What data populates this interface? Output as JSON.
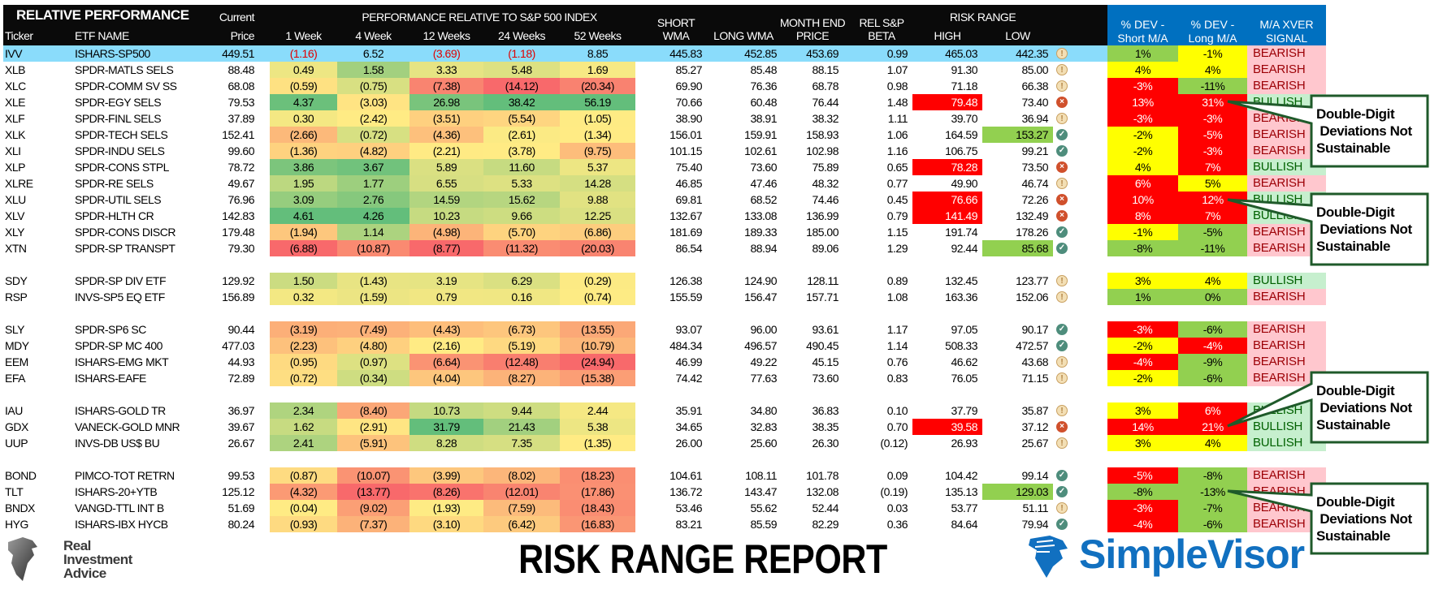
{
  "header": {
    "title": "RELATIVE PERFORMANCE",
    "ticker": "Ticker",
    "etf_name": "ETF NAME",
    "current": "Current",
    "price": "Price",
    "perf_group": "PERFORMANCE RELATIVE TO S&P 500 INDEX",
    "periods": [
      "1 Week",
      "4 Week",
      "12 Weeks",
      "24 Weeks",
      "52 Weeks"
    ],
    "short": "SHORT",
    "wma": "WMA",
    "long_wma": "LONG WMA",
    "month_end": "MONTH END",
    "month_end_price": "PRICE",
    "rel_sp": "REL S&P",
    "beta": "BETA",
    "risk_range": "RISK RANGE",
    "high": "HIGH",
    "low": "LOW",
    "dev_short_1": "% DEV -",
    "dev_short_2": "Short M/A",
    "dev_long_1": "% DEV -",
    "dev_long_2": "Long M/A",
    "signal_1": "M/A XVER",
    "signal_2": "SIGNAL"
  },
  "colors": {
    "heat_red": "#F8696B",
    "heat_yellow": "#FFEB84",
    "heat_green": "#63BE7B",
    "benchmark_row": "#8adcfb",
    "header_blue": "#0070c0"
  },
  "groups": [
    [
      {
        "ticker": "IVV",
        "name": "ISHARS-SP500",
        "price": "449.51",
        "perf": [
          "(1.16)",
          "6.52",
          "(3.69)",
          "(1.18)",
          "8.85"
        ],
        "short_wma": "445.83",
        "long_wma": "452.85",
        "month_end": "453.69",
        "beta": "0.99",
        "high": "465.03",
        "low": "442.35",
        "high_flag": "",
        "low_flag": "",
        "icon": "warn",
        "dev_short": "1%",
        "dev_short_color": "g",
        "dev_long": "-1%",
        "dev_long_color": "y",
        "signal": "BEARISH",
        "benchmark": true
      },
      {
        "ticker": "XLB",
        "name": "SPDR-MATLS SELS",
        "price": "88.48",
        "perf": [
          "0.49",
          "1.58",
          "3.33",
          "5.48",
          "1.69"
        ],
        "short_wma": "85.27",
        "long_wma": "85.48",
        "month_end": "88.15",
        "beta": "1.07",
        "high": "91.30",
        "low": "85.00",
        "high_flag": "",
        "low_flag": "",
        "icon": "warn",
        "dev_short": "4%",
        "dev_short_color": "y",
        "dev_long": "4%",
        "dev_long_color": "y",
        "signal": "BEARISH"
      },
      {
        "ticker": "XLC",
        "name": "SPDR-COMM SV SS",
        "price": "68.08",
        "perf": [
          "(0.59)",
          "(0.75)",
          "(7.38)",
          "(14.12)",
          "(20.34)"
        ],
        "short_wma": "69.90",
        "long_wma": "76.36",
        "month_end": "68.78",
        "beta": "0.98",
        "high": "71.18",
        "low": "66.38",
        "high_flag": "",
        "low_flag": "",
        "icon": "warn",
        "dev_short": "-3%",
        "dev_short_color": "r",
        "dev_long": "-11%",
        "dev_long_color": "g",
        "signal": "BEARISH"
      },
      {
        "ticker": "XLE",
        "name": "SPDR-EGY SELS",
        "price": "79.53",
        "perf": [
          "4.37",
          "(3.03)",
          "26.98",
          "38.42",
          "56.19"
        ],
        "short_wma": "70.66",
        "long_wma": "60.48",
        "month_end": "76.44",
        "beta": "1.48",
        "high": "79.48",
        "low": "73.40",
        "high_flag": "red",
        "low_flag": "",
        "icon": "x",
        "dev_short": "13%",
        "dev_short_color": "r",
        "dev_long": "31%",
        "dev_long_color": "r",
        "signal": "BULLISH"
      },
      {
        "ticker": "XLF",
        "name": "SPDR-FINL SELS",
        "price": "37.89",
        "perf": [
          "0.30",
          "(2.42)",
          "(3.51)",
          "(5.54)",
          "(1.05)"
        ],
        "short_wma": "38.90",
        "long_wma": "38.91",
        "month_end": "38.32",
        "beta": "1.11",
        "high": "39.70",
        "low": "36.94",
        "high_flag": "",
        "low_flag": "",
        "icon": "warn",
        "dev_short": "-3%",
        "dev_short_color": "r",
        "dev_long": "-3%",
        "dev_long_color": "r",
        "signal": "BEARISH"
      },
      {
        "ticker": "XLK",
        "name": "SPDR-TECH SELS",
        "price": "152.41",
        "perf": [
          "(2.66)",
          "(0.72)",
          "(4.36)",
          "(2.61)",
          "(1.34)"
        ],
        "short_wma": "156.01",
        "long_wma": "159.91",
        "month_end": "158.93",
        "beta": "1.06",
        "high": "164.59",
        "low": "153.27",
        "high_flag": "",
        "low_flag": "green",
        "icon": "check",
        "dev_short": "-2%",
        "dev_short_color": "y",
        "dev_long": "-5%",
        "dev_long_color": "r",
        "signal": "BEARISH"
      },
      {
        "ticker": "XLI",
        "name": "SPDR-INDU SELS",
        "price": "99.60",
        "perf": [
          "(1.36)",
          "(4.82)",
          "(2.21)",
          "(3.78)",
          "(9.75)"
        ],
        "short_wma": "101.15",
        "long_wma": "102.61",
        "month_end": "102.98",
        "beta": "1.16",
        "high": "106.75",
        "low": "99.21",
        "high_flag": "",
        "low_flag": "",
        "icon": "check",
        "dev_short": "-2%",
        "dev_short_color": "y",
        "dev_long": "-3%",
        "dev_long_color": "r",
        "signal": "BEARISH"
      },
      {
        "ticker": "XLP",
        "name": "SPDR-CONS STPL",
        "price": "78.72",
        "perf": [
          "3.86",
          "3.67",
          "5.89",
          "11.60",
          "5.37"
        ],
        "short_wma": "75.40",
        "long_wma": "73.60",
        "month_end": "75.89",
        "beta": "0.65",
        "high": "78.28",
        "low": "73.50",
        "high_flag": "red",
        "low_flag": "",
        "icon": "x",
        "dev_short": "4%",
        "dev_short_color": "y",
        "dev_long": "7%",
        "dev_long_color": "r",
        "signal": "BULLISH"
      },
      {
        "ticker": "XLRE",
        "name": "SPDR-RE SELS",
        "price": "49.67",
        "perf": [
          "1.95",
          "1.77",
          "6.55",
          "5.33",
          "14.28"
        ],
        "short_wma": "46.85",
        "long_wma": "47.46",
        "month_end": "48.32",
        "beta": "0.77",
        "high": "49.90",
        "low": "46.74",
        "high_flag": "",
        "low_flag": "",
        "icon": "warn",
        "dev_short": "6%",
        "dev_short_color": "r",
        "dev_long": "5%",
        "dev_long_color": "y",
        "signal": "BEARISH"
      },
      {
        "ticker": "XLU",
        "name": "SPDR-UTIL SELS",
        "price": "76.96",
        "perf": [
          "3.09",
          "2.76",
          "14.59",
          "15.62",
          "9.88"
        ],
        "short_wma": "69.81",
        "long_wma": "68.52",
        "month_end": "74.46",
        "beta": "0.45",
        "high": "76.66",
        "low": "72.26",
        "high_flag": "red",
        "low_flag": "",
        "icon": "x",
        "dev_short": "10%",
        "dev_short_color": "r",
        "dev_long": "12%",
        "dev_long_color": "r",
        "signal": "BULLISH"
      },
      {
        "ticker": "XLV",
        "name": "SPDR-HLTH CR",
        "price": "142.83",
        "perf": [
          "4.61",
          "4.26",
          "10.23",
          "9.66",
          "12.25"
        ],
        "short_wma": "132.67",
        "long_wma": "133.08",
        "month_end": "136.99",
        "beta": "0.79",
        "high": "141.49",
        "low": "132.49",
        "high_flag": "red",
        "low_flag": "",
        "icon": "x",
        "dev_short": "8%",
        "dev_short_color": "r",
        "dev_long": "7%",
        "dev_long_color": "r",
        "signal": "BULLISH"
      },
      {
        "ticker": "XLY",
        "name": "SPDR-CONS DISCR",
        "price": "179.48",
        "perf": [
          "(1.94)",
          "1.14",
          "(4.98)",
          "(5.70)",
          "(6.86)"
        ],
        "short_wma": "181.69",
        "long_wma": "189.33",
        "month_end": "185.00",
        "beta": "1.15",
        "high": "191.74",
        "low": "178.26",
        "high_flag": "",
        "low_flag": "",
        "icon": "check",
        "dev_short": "-1%",
        "dev_short_color": "y",
        "dev_long": "-5%",
        "dev_long_color": "g",
        "signal": "BEARISH"
      },
      {
        "ticker": "XTN",
        "name": "SPDR-SP TRANSPT",
        "price": "79.30",
        "perf": [
          "(6.88)",
          "(10.87)",
          "(8.77)",
          "(11.32)",
          "(20.03)"
        ],
        "short_wma": "86.54",
        "long_wma": "88.94",
        "month_end": "89.06",
        "beta": "1.29",
        "high": "92.44",
        "low": "85.68",
        "high_flag": "",
        "low_flag": "green",
        "icon": "check",
        "dev_short": "-8%",
        "dev_short_color": "g",
        "dev_long": "-11%",
        "dev_long_color": "g",
        "signal": "BEARISH"
      }
    ],
    [
      {
        "ticker": "SDY",
        "name": "SPDR-SP DIV ETF",
        "price": "129.92",
        "perf": [
          "1.50",
          "(1.43)",
          "3.19",
          "6.29",
          "(0.29)"
        ],
        "short_wma": "126.38",
        "long_wma": "124.90",
        "month_end": "128.11",
        "beta": "0.89",
        "high": "132.45",
        "low": "123.77",
        "high_flag": "",
        "low_flag": "",
        "icon": "warn",
        "dev_short": "3%",
        "dev_short_color": "y",
        "dev_long": "4%",
        "dev_long_color": "y",
        "signal": "BULLISH"
      },
      {
        "ticker": "RSP",
        "name": "INVS-SP5 EQ ETF",
        "price": "156.89",
        "perf": [
          "0.32",
          "(1.59)",
          "0.79",
          "0.16",
          "(0.74)"
        ],
        "short_wma": "155.59",
        "long_wma": "156.47",
        "month_end": "157.71",
        "beta": "1.08",
        "high": "163.36",
        "low": "152.06",
        "high_flag": "",
        "low_flag": "",
        "icon": "warn",
        "dev_short": "1%",
        "dev_short_color": "g",
        "dev_long": "0%",
        "dev_long_color": "g",
        "signal": "BEARISH"
      }
    ],
    [
      {
        "ticker": "SLY",
        "name": "SPDR-SP6 SC",
        "price": "90.44",
        "perf": [
          "(3.19)",
          "(7.49)",
          "(4.43)",
          "(6.73)",
          "(13.55)"
        ],
        "short_wma": "93.07",
        "long_wma": "96.00",
        "month_end": "93.61",
        "beta": "1.17",
        "high": "97.05",
        "low": "90.17",
        "high_flag": "",
        "low_flag": "",
        "icon": "check",
        "dev_short": "-3%",
        "dev_short_color": "r",
        "dev_long": "-6%",
        "dev_long_color": "g",
        "signal": "BEARISH"
      },
      {
        "ticker": "MDY",
        "name": "SPDR-SP MC 400",
        "price": "477.03",
        "perf": [
          "(2.23)",
          "(4.80)",
          "(2.16)",
          "(5.19)",
          "(10.79)"
        ],
        "short_wma": "484.34",
        "long_wma": "496.57",
        "month_end": "490.45",
        "beta": "1.14",
        "high": "508.33",
        "low": "472.57",
        "high_flag": "",
        "low_flag": "",
        "icon": "check",
        "dev_short": "-2%",
        "dev_short_color": "y",
        "dev_long": "-4%",
        "dev_long_color": "r",
        "signal": "BEARISH"
      },
      {
        "ticker": "EEM",
        "name": "ISHARS-EMG MKT",
        "price": "44.93",
        "perf": [
          "(0.95)",
          "(0.97)",
          "(6.64)",
          "(12.48)",
          "(24.94)"
        ],
        "short_wma": "46.99",
        "long_wma": "49.22",
        "month_end": "45.15",
        "beta": "0.76",
        "high": "46.62",
        "low": "43.68",
        "high_flag": "",
        "low_flag": "",
        "icon": "warn",
        "dev_short": "-4%",
        "dev_short_color": "r",
        "dev_long": "-9%",
        "dev_long_color": "g",
        "signal": "BEARISH"
      },
      {
        "ticker": "EFA",
        "name": "ISHARS-EAFE",
        "price": "72.89",
        "perf": [
          "(0.72)",
          "(0.34)",
          "(4.04)",
          "(8.27)",
          "(15.38)"
        ],
        "short_wma": "74.42",
        "long_wma": "77.63",
        "month_end": "73.60",
        "beta": "0.83",
        "high": "76.05",
        "low": "71.15",
        "high_flag": "",
        "low_flag": "",
        "icon": "warn",
        "dev_short": "-2%",
        "dev_short_color": "y",
        "dev_long": "-6%",
        "dev_long_color": "g",
        "signal": "BEARISH"
      }
    ],
    [
      {
        "ticker": "IAU",
        "name": "ISHARS-GOLD TR",
        "price": "36.97",
        "perf": [
          "2.34",
          "(8.40)",
          "10.73",
          "9.44",
          "2.44"
        ],
        "short_wma": "35.91",
        "long_wma": "34.80",
        "month_end": "36.83",
        "beta": "0.10",
        "high": "37.79",
        "low": "35.87",
        "high_flag": "",
        "low_flag": "",
        "icon": "warn",
        "dev_short": "3%",
        "dev_short_color": "y",
        "dev_long": "6%",
        "dev_long_color": "r",
        "signal": "BULLISH"
      },
      {
        "ticker": "GDX",
        "name": "VANECK-GOLD MNR",
        "price": "39.67",
        "perf": [
          "1.62",
          "(2.91)",
          "31.79",
          "21.43",
          "5.38"
        ],
        "short_wma": "34.65",
        "long_wma": "32.83",
        "month_end": "38.35",
        "beta": "0.70",
        "high": "39.58",
        "low": "37.12",
        "high_flag": "red",
        "low_flag": "",
        "icon": "x",
        "dev_short": "14%",
        "dev_short_color": "r",
        "dev_long": "21%",
        "dev_long_color": "r",
        "signal": "BULLISH"
      },
      {
        "ticker": "UUP",
        "name": "INVS-DB US$ BU",
        "price": "26.67",
        "perf": [
          "2.41",
          "(5.91)",
          "8.28",
          "7.35",
          "(1.35)"
        ],
        "short_wma": "26.00",
        "long_wma": "25.60",
        "month_end": "26.30",
        "beta": "(0.12)",
        "high": "26.93",
        "low": "25.67",
        "high_flag": "",
        "low_flag": "",
        "icon": "warn",
        "dev_short": "3%",
        "dev_short_color": "y",
        "dev_long": "4%",
        "dev_long_color": "y",
        "signal": "BULLISH"
      }
    ],
    [
      {
        "ticker": "BOND",
        "name": "PIMCO-TOT RETRN",
        "price": "99.53",
        "perf": [
          "(0.87)",
          "(10.07)",
          "(3.99)",
          "(8.02)",
          "(18.23)"
        ],
        "short_wma": "104.61",
        "long_wma": "108.11",
        "month_end": "101.78",
        "beta": "0.09",
        "high": "104.42",
        "low": "99.14",
        "high_flag": "",
        "low_flag": "",
        "icon": "check",
        "dev_short": "-5%",
        "dev_short_color": "r",
        "dev_long": "-8%",
        "dev_long_color": "g",
        "signal": "BEARISH"
      },
      {
        "ticker": "TLT",
        "name": "ISHARS-20+YTB",
        "price": "125.12",
        "perf": [
          "(4.32)",
          "(13.77)",
          "(8.26)",
          "(12.01)",
          "(17.86)"
        ],
        "short_wma": "136.72",
        "long_wma": "143.47",
        "month_end": "132.08",
        "beta": "(0.19)",
        "high": "135.13",
        "low": "129.03",
        "high_flag": "",
        "low_flag": "green",
        "icon": "check",
        "dev_short": "-8%",
        "dev_short_color": "g",
        "dev_long": "-13%",
        "dev_long_color": "g",
        "signal": "BEARISH"
      },
      {
        "ticker": "BNDX",
        "name": "VANGD-TTL INT B",
        "price": "51.69",
        "perf": [
          "(0.04)",
          "(9.02)",
          "(1.93)",
          "(7.59)",
          "(18.43)"
        ],
        "short_wma": "53.46",
        "long_wma": "55.62",
        "month_end": "52.44",
        "beta": "0.03",
        "high": "53.77",
        "low": "51.11",
        "high_flag": "",
        "low_flag": "",
        "icon": "warn",
        "dev_short": "-3%",
        "dev_short_color": "r",
        "dev_long": "-7%",
        "dev_long_color": "g",
        "signal": "BEARISH"
      },
      {
        "ticker": "HYG",
        "name": "ISHARS-IBX HYCB",
        "price": "80.24",
        "perf": [
          "(0.93)",
          "(7.37)",
          "(3.10)",
          "(6.42)",
          "(16.83)"
        ],
        "short_wma": "83.21",
        "long_wma": "85.59",
        "month_end": "82.29",
        "beta": "0.36",
        "high": "84.64",
        "low": "79.94",
        "high_flag": "",
        "low_flag": "",
        "icon": "check",
        "dev_short": "-4%",
        "dev_short_color": "r",
        "dev_long": "-6%",
        "dev_long_color": "g",
        "signal": "BEARISH"
      }
    ]
  ],
  "callouts": [
    {
      "lines": [
        "Double-Digit",
        " Deviations Not",
        "Sustainable"
      ]
    },
    {
      "lines": [
        "Double-Digit",
        " Deviations Not",
        "Sustainable"
      ]
    },
    {
      "lines": [
        "Double-Digit",
        " Deviations Not",
        "Sustainable"
      ]
    },
    {
      "lines": [
        "Double-Digit",
        " Deviations Not",
        "Sustainable"
      ]
    }
  ],
  "footer": {
    "title": "RISK RANGE REPORT",
    "ria_logo_text": [
      "Real",
      "Investment",
      "Advice"
    ],
    "simplevisor_logo_text": "SimpleVisor"
  }
}
